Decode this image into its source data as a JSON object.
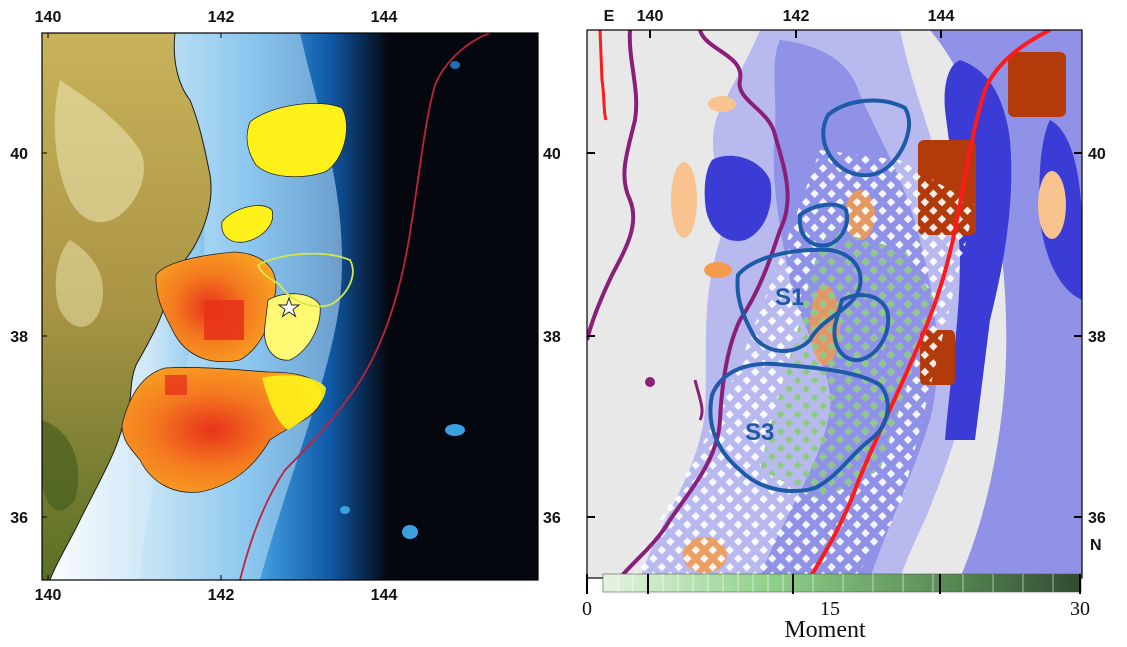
{
  "left_panel": {
    "lon_ticks_top": [
      "140",
      "142",
      "144"
    ],
    "lon_ticks_bottom": [
      "140",
      "142",
      "144"
    ],
    "lat_ticks_left": [
      "40",
      "38",
      "36"
    ],
    "lat_ticks_right": [
      "40",
      "38",
      "36"
    ],
    "colors": {
      "land": "#6f7a2a",
      "shelf": "#cfe8f6",
      "deep_sea": "#05070f",
      "trench": "#c0223b",
      "rupture_high": "#ee4a1c",
      "rupture_mid": "#f7931e",
      "rupture_low": "#fff21a"
    }
  },
  "right_panel": {
    "corner_e": "E",
    "corner_n": "N",
    "lon_ticks_top": [
      "140",
      "142",
      "144"
    ],
    "lat_ticks_right": [
      "40",
      "38",
      "36"
    ],
    "region_labels": [
      "S1",
      "S3"
    ],
    "colorbar": {
      "tick_labels": [
        "0",
        "15",
        "30"
      ],
      "label": "Moment",
      "min": 0,
      "max": 30,
      "colors": [
        "#e6f3e2",
        "#8fd18a",
        "#2f4a30"
      ]
    },
    "colors": {
      "contour_blue": "#1d5aa8",
      "coast_purple": "#8a1f7a",
      "trench": "#ff1a1a",
      "neg_field": "#3b3bd6",
      "pos_field": "#b33a0a"
    }
  }
}
